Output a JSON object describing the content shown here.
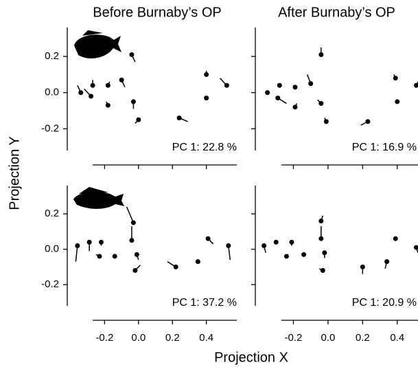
{
  "xlabel": "Projection X",
  "ylabel": "Projection Y",
  "chart_data": [
    {
      "type": "scatter",
      "title": "Before Burnaby’s OP",
      "annotation": "PC  1:  22.8 %",
      "color": "#000000",
      "x": [
        -0.34,
        -0.28,
        -0.27,
        -0.18,
        -0.18,
        -0.1,
        -0.04,
        -0.03,
        0.0,
        0.24,
        0.4,
        0.4,
        0.52
      ],
      "y": [
        0.0,
        -0.02,
        0.04,
        0.04,
        -0.07,
        0.07,
        0.21,
        -0.05,
        -0.15,
        -0.14,
        0.1,
        -0.03,
        0.04
      ],
      "x_end": [
        -0.36,
        -0.32,
        -0.27,
        -0.17,
        -0.19,
        -0.08,
        -0.02,
        -0.03,
        -0.02,
        0.29,
        0.4,
        0.4,
        0.48
      ],
      "y_end": [
        0.04,
        0.02,
        0.07,
        0.06,
        -0.05,
        0.03,
        0.17,
        -0.09,
        -0.17,
        -0.16,
        0.12,
        -0.02,
        0.08
      ],
      "xlim": [
        -0.42,
        0.64
      ],
      "ylim": [
        -0.32,
        0.36
      ],
      "xticks": [
        -0.2,
        {
          "value": 0,
          "label": "0.0"
        },
        0.2,
        0.4
      ],
      "yticks": [
        -0.2,
        {
          "value": 0,
          "label": "0.0"
        },
        0.2
      ],
      "xtick_labels": false,
      "ytick_labels": true
    },
    {
      "type": "scatter",
      "title": "After Burnaby’s OP",
      "annotation": "PC  1:  16.9 %",
      "color": "#000000",
      "x": [
        -0.35,
        -0.28,
        -0.29,
        -0.19,
        -0.19,
        -0.1,
        -0.04,
        -0.04,
        -0.01,
        0.23,
        0.39,
        0.4,
        0.51
      ],
      "y": [
        0.0,
        0.04,
        -0.03,
        0.03,
        -0.08,
        0.05,
        0.21,
        -0.06,
        -0.16,
        -0.16,
        0.08,
        -0.05,
        0.04
      ],
      "x_end": [
        -0.36,
        -0.28,
        -0.24,
        -0.2,
        -0.18,
        -0.12,
        -0.04,
        -0.06,
        -0.02,
        0.19,
        0.38,
        0.4,
        0.52
      ],
      "y_end": [
        0.01,
        0.05,
        -0.06,
        0.04,
        -0.06,
        0.1,
        0.25,
        -0.04,
        -0.14,
        -0.18,
        0.1,
        -0.04,
        0.06
      ],
      "xlim": [
        -0.42,
        0.52
      ],
      "ylim": [
        -0.32,
        0.36
      ],
      "xticks": [
        -0.2,
        {
          "value": 0,
          "label": "0.0"
        },
        0.2,
        0.4
      ],
      "yticks": [
        -0.2,
        {
          "value": 0,
          "label": "0.0"
        },
        0.2
      ],
      "xtick_labels": false,
      "ytick_labels": false
    },
    {
      "type": "scatter",
      "annotation": "PC  1:  37.2 %",
      "color": "#000000",
      "x": [
        -0.36,
        -0.29,
        -0.22,
        -0.23,
        -0.14,
        -0.03,
        -0.04,
        -0.01,
        -0.02,
        0.22,
        0.35,
        0.41,
        0.53
      ],
      "y": [
        0.02,
        0.04,
        0.04,
        -0.04,
        -0.04,
        0.15,
        0.05,
        -0.03,
        -0.12,
        -0.1,
        -0.07,
        0.06,
        0.02
      ],
      "x_end": [
        -0.37,
        -0.29,
        -0.22,
        -0.25,
        -0.14,
        -0.07,
        -0.04,
        0.0,
        0.01,
        0.17,
        0.34,
        0.44,
        0.54
      ],
      "y_end": [
        -0.07,
        -0.01,
        0.02,
        -0.03,
        -0.04,
        0.24,
        0.13,
        -0.06,
        -0.09,
        -0.07,
        -0.07,
        0.03,
        -0.06
      ],
      "xlim": [
        -0.42,
        0.64
      ],
      "ylim": [
        -0.32,
        0.36
      ],
      "xticks": [
        -0.2,
        {
          "value": 0,
          "label": "0.0"
        },
        0.2,
        0.4
      ],
      "yticks": [
        -0.2,
        {
          "value": 0,
          "label": "0.0"
        },
        0.2
      ],
      "xtick_labels": true,
      "ytick_labels": true
    },
    {
      "type": "scatter",
      "annotation": "PC  1:  20.9 %",
      "color": "#000000",
      "x": [
        -0.37,
        -0.3,
        -0.24,
        -0.21,
        -0.14,
        -0.04,
        -0.04,
        -0.02,
        -0.03,
        0.2,
        0.34,
        0.39,
        0.51
      ],
      "y": [
        0.02,
        0.04,
        -0.04,
        0.04,
        -0.03,
        0.16,
        0.06,
        -0.02,
        -0.12,
        -0.1,
        -0.07,
        0.06,
        0.01
      ],
      "x_end": [
        -0.36,
        -0.3,
        -0.23,
        -0.21,
        -0.13,
        -0.03,
        -0.04,
        -0.02,
        -0.05,
        0.2,
        0.33,
        0.39,
        0.52
      ],
      "y_end": [
        -0.02,
        0.03,
        -0.03,
        0.02,
        -0.03,
        0.19,
        0.13,
        -0.05,
        -0.11,
        -0.14,
        -0.11,
        0.06,
        -0.02
      ],
      "xlim": [
        -0.42,
        0.52
      ],
      "ylim": [
        -0.32,
        0.36
      ],
      "xticks": [
        -0.2,
        {
          "value": 0,
          "label": "0.0"
        },
        0.2,
        0.4
      ],
      "yticks": [
        -0.2,
        {
          "value": 0,
          "label": "0.0"
        },
        0.2
      ],
      "xtick_labels": true,
      "ytick_labels": false
    }
  ]
}
